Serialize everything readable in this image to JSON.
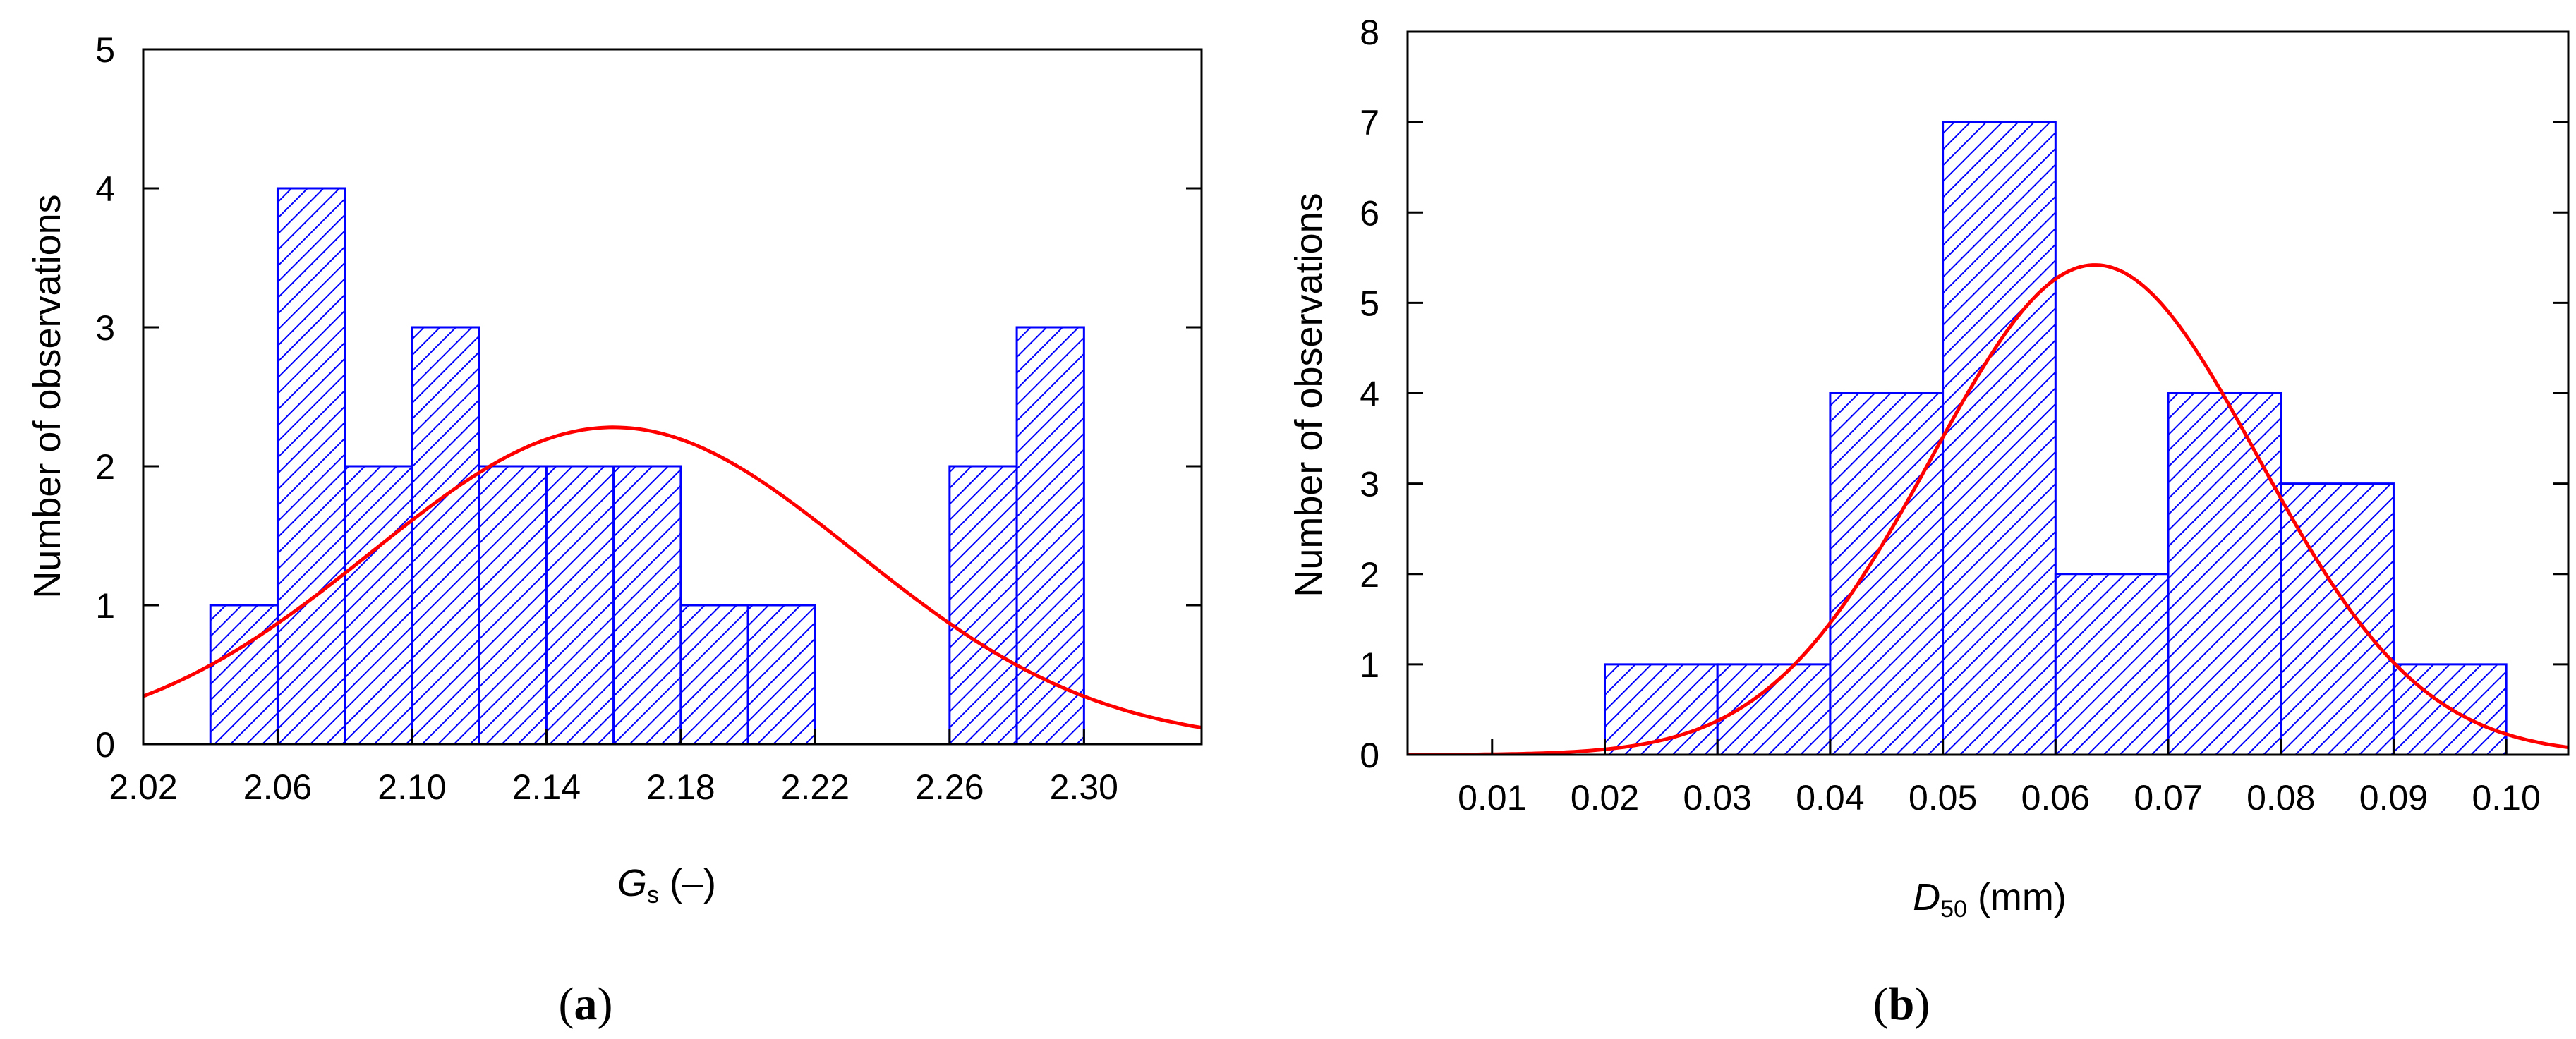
{
  "colors": {
    "bar_edge": "#0000ff",
    "bar_hatch": "#0000ff",
    "curve": "#ff0000",
    "axes": "#000000"
  },
  "chart_data": [
    {
      "type": "bar",
      "panel": "a",
      "caption_open": "(",
      "caption_letter": "a",
      "caption_close": ")",
      "xlabel_main": "G",
      "xlabel_sub": "s",
      "xlabel_unit": " (–)",
      "ylabel": "Number of observations",
      "xlim": [
        2.02,
        2.335
      ],
      "ylim": [
        0,
        5
      ],
      "xticks": [
        2.02,
        2.06,
        2.1,
        2.14,
        2.18,
        2.22,
        2.26,
        2.3
      ],
      "xtick_labels": [
        "2.02",
        "2.06",
        "2.10",
        "2.14",
        "2.18",
        "2.22",
        "2.26",
        "2.30"
      ],
      "yticks": [
        0,
        1,
        2,
        3,
        4,
        5
      ],
      "ytick_labels": [
        "0",
        "1",
        "2",
        "3",
        "4",
        "5"
      ],
      "bins": [
        {
          "x0": 2.04,
          "x1": 2.06,
          "value": 1
        },
        {
          "x0": 2.06,
          "x1": 2.08,
          "value": 4
        },
        {
          "x0": 2.08,
          "x1": 2.1,
          "value": 2
        },
        {
          "x0": 2.1,
          "x1": 2.12,
          "value": 3
        },
        {
          "x0": 2.12,
          "x1": 2.14,
          "value": 2
        },
        {
          "x0": 2.14,
          "x1": 2.16,
          "value": 2
        },
        {
          "x0": 2.16,
          "x1": 2.18,
          "value": 2
        },
        {
          "x0": 2.18,
          "x1": 2.2,
          "value": 1
        },
        {
          "x0": 2.2,
          "x1": 2.22,
          "value": 1
        },
        {
          "x0": 2.26,
          "x1": 2.28,
          "value": 2
        },
        {
          "x0": 2.28,
          "x1": 2.3,
          "value": 3
        }
      ],
      "fit_curve": {
        "type": "normal",
        "mean": 2.16,
        "sd": 0.072,
        "peak": 2.28
      },
      "grid": false,
      "legend": "none"
    },
    {
      "type": "bar",
      "panel": "b",
      "caption_open": "(",
      "caption_letter": "b",
      "caption_close": ")",
      "xlabel_main": "D",
      "xlabel_sub": "50",
      "xlabel_unit": " (mm)",
      "ylabel": "Number of observations",
      "xlim": [
        0.0025,
        0.1055
      ],
      "ylim": [
        0,
        8
      ],
      "xticks": [
        0.01,
        0.02,
        0.03,
        0.04,
        0.05,
        0.06,
        0.07,
        0.08,
        0.09,
        0.1
      ],
      "xtick_labels": [
        "0.01",
        "0.02",
        "0.03",
        "0.04",
        "0.05",
        "0.06",
        "0.07",
        "0.08",
        "0.09",
        "0.10"
      ],
      "yticks": [
        0,
        1,
        2,
        3,
        4,
        5,
        6,
        7,
        8
      ],
      "ytick_labels": [
        "0",
        "1",
        "2",
        "3",
        "4",
        "5",
        "6",
        "7",
        "8"
      ],
      "bins": [
        {
          "x0": 0.02,
          "x1": 0.03,
          "value": 1
        },
        {
          "x0": 0.03,
          "x1": 0.04,
          "value": 1
        },
        {
          "x0": 0.04,
          "x1": 0.05,
          "value": 4
        },
        {
          "x0": 0.05,
          "x1": 0.06,
          "value": 7
        },
        {
          "x0": 0.06,
          "x1": 0.07,
          "value": 2
        },
        {
          "x0": 0.07,
          "x1": 0.08,
          "value": 4
        },
        {
          "x0": 0.08,
          "x1": 0.09,
          "value": 3
        },
        {
          "x0": 0.09,
          "x1": 0.1,
          "value": 1
        }
      ],
      "fit_curve": {
        "type": "normal",
        "mean": 0.0635,
        "sd": 0.0145,
        "peak": 5.42
      },
      "grid": false,
      "legend": "none"
    }
  ]
}
